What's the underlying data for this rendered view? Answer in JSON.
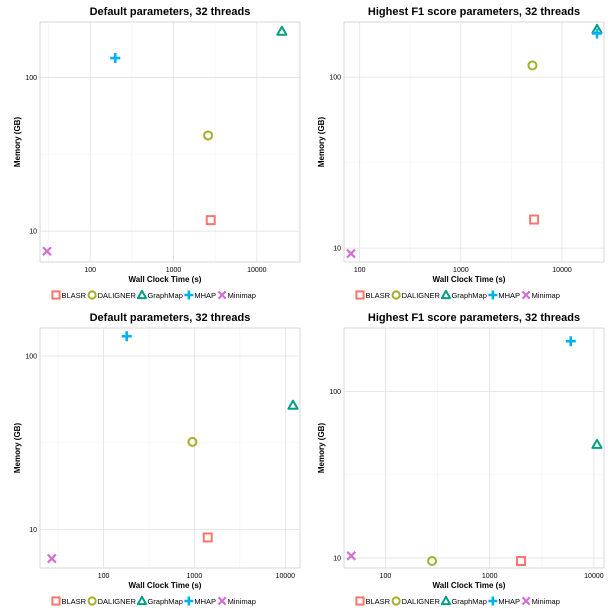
{
  "legend": {
    "entries": [
      {
        "name": "BLASR",
        "color": "#f8766d",
        "shape": "square"
      },
      {
        "name": "DALIGNER",
        "color": "#a3b02a",
        "shape": "circle"
      },
      {
        "name": "GraphMap",
        "color": "#00a080",
        "shape": "triangle"
      },
      {
        "name": "MHAP",
        "color": "#00b0f0",
        "shape": "plus"
      },
      {
        "name": "Minimap",
        "color": "#d070d0",
        "shape": "cross"
      }
    ]
  },
  "chart_data": [
    {
      "type": "scatter",
      "title": "Default parameters, 32 threads",
      "xlabel": "Wall Clock Time (s)",
      "ylabel": "Memory (GB)",
      "xscale": "log",
      "yscale": "log",
      "xlim": [
        25,
        33000
      ],
      "ylim": [
        6.3,
        230
      ],
      "xticks": [
        {
          "v": 100,
          "label": "100"
        },
        {
          "v": 1000,
          "label": "1000"
        },
        {
          "v": 10000,
          "label": "10000"
        }
      ],
      "yticks": [
        {
          "v": 10,
          "label": "10"
        },
        {
          "v": 100,
          "label": "100"
        }
      ],
      "points": [
        {
          "series": "BLASR",
          "x": 2800,
          "y": 11.8
        },
        {
          "series": "DALIGNER",
          "x": 2600,
          "y": 42
        },
        {
          "series": "GraphMap",
          "x": 20000,
          "y": 200
        },
        {
          "series": "MHAP",
          "x": 200,
          "y": 134
        },
        {
          "series": "Minimap",
          "x": 30,
          "y": 7.4
        }
      ]
    },
    {
      "type": "scatter",
      "title": "Highest F1 score parameters, 32 threads",
      "xlabel": "Wall Clock Time (s)",
      "ylabel": "Memory (GB)",
      "xscale": "log",
      "yscale": "log",
      "xlim": [
        70,
        26000
      ],
      "ylim": [
        8.3,
        210
      ],
      "xticks": [
        {
          "v": 100,
          "label": "100"
        },
        {
          "v": 1000,
          "label": "1000"
        },
        {
          "v": 10000,
          "label": "10000"
        }
      ],
      "yticks": [
        {
          "v": 10,
          "label": "10"
        },
        {
          "v": 100,
          "label": "100"
        }
      ],
      "points": [
        {
          "series": "BLASR",
          "x": 5300,
          "y": 14.7
        },
        {
          "series": "DALIGNER",
          "x": 5100,
          "y": 117
        },
        {
          "series": "GraphMap",
          "x": 24000,
          "y": 190
        },
        {
          "series": "MHAP",
          "x": 23000,
          "y": 180
        },
        {
          "series": "Minimap",
          "x": 82,
          "y": 9.3
        }
      ]
    },
    {
      "type": "scatter",
      "title": "Default parameters, 32 threads",
      "xlabel": "Wall Clock Time (s)",
      "ylabel": "Memory (GB)",
      "xscale": "log",
      "yscale": "log",
      "xlim": [
        20,
        14500
      ],
      "ylim": [
        6.0,
        145
      ],
      "xticks": [
        {
          "v": 100,
          "label": "100"
        },
        {
          "v": 1000,
          "label": "1000"
        },
        {
          "v": 10000,
          "label": "10000"
        }
      ],
      "yticks": [
        {
          "v": 10,
          "label": "10"
        },
        {
          "v": 100,
          "label": "100"
        }
      ],
      "points": [
        {
          "series": "BLASR",
          "x": 1400,
          "y": 9.0
        },
        {
          "series": "DALIGNER",
          "x": 950,
          "y": 32
        },
        {
          "series": "GraphMap",
          "x": 12500,
          "y": 52
        },
        {
          "series": "MHAP",
          "x": 180,
          "y": 130
        },
        {
          "series": "Minimap",
          "x": 27,
          "y": 6.8
        }
      ]
    },
    {
      "type": "scatter",
      "title": "Highest F1 score parameters, 32 threads",
      "xlabel": "Wall Clock Time (s)",
      "ylabel": "Memory (GB)",
      "xscale": "log",
      "yscale": "log",
      "xlim": [
        40,
        12500
      ],
      "ylim": [
        8.7,
        240
      ],
      "xticks": [
        {
          "v": 100,
          "label": "100"
        },
        {
          "v": 1000,
          "label": "1000"
        },
        {
          "v": 10000,
          "label": "10000"
        }
      ],
      "yticks": [
        {
          "v": 10,
          "label": "10"
        },
        {
          "v": 100,
          "label": "100"
        }
      ],
      "points": [
        {
          "series": "BLASR",
          "x": 2000,
          "y": 9.1
        },
        {
          "series": "DALIGNER",
          "x": 280,
          "y": 9.3
        },
        {
          "series": "GraphMap",
          "x": 11000,
          "y": 48
        },
        {
          "series": "MHAP",
          "x": 6000,
          "y": 200
        },
        {
          "series": "Minimap",
          "x": 47,
          "y": 10.3
        }
      ]
    }
  ]
}
